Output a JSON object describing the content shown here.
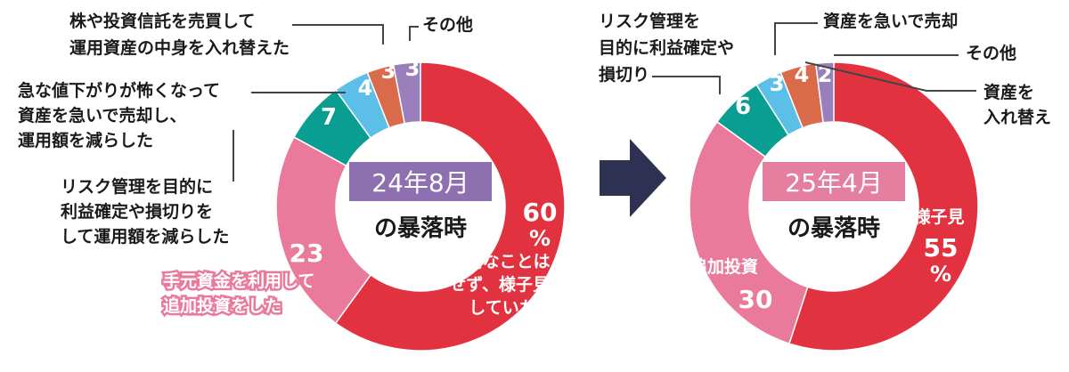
{
  "chart_data": [
    {
      "type": "pie",
      "title": "24年8月",
      "subtitle": "の暴落時",
      "unit": "%",
      "categories": [
        "特別なことはせず、様子見していた",
        "手元資金を利用して追加投資をした",
        "リスク管理を目的に利益確定や損切りをして運用額を減らした",
        "急な値下がりが怖くなって資産を急いで売却し、運用額を減らした",
        "株や投資信託を売買して運用資産の中身を入れ替えた",
        "その他"
      ],
      "values": [
        60,
        23,
        7,
        4,
        3,
        3
      ]
    },
    {
      "type": "pie",
      "title": "25年4月",
      "subtitle": "の暴落時",
      "unit": "%",
      "categories": [
        "様子見",
        "追加投資",
        "リスク管理を目的に利益確定や損切り",
        "資産を急いで売却",
        "資産を入れ替え",
        "その他"
      ],
      "values": [
        55,
        30,
        6,
        3,
        4,
        2
      ]
    }
  ],
  "colors": {
    "wait": "#e3323f",
    "add": "#e97a9c",
    "risk": "#0a9e93",
    "sell": "#5bbfe8",
    "swap": "#d96a4a",
    "other": "#9b7fbc",
    "title_box1": "#8e6fb0",
    "title_box2": "#e47fa0",
    "arrow": "#2f3152",
    "text": "#1a1a1a",
    "leader": "#444444"
  },
  "labels": {
    "c1_wait_text": [
      "特別なことは",
      "せず、様子見",
      "していた"
    ],
    "c1_add_text": [
      "手元資金を利用して",
      "追加投資をした"
    ],
    "c1_risk_text": [
      "リスク管理を目的に",
      "利益確定や損切りを",
      "して運用額を減らした"
    ],
    "c1_sell_text": [
      "急な値下がりが怖くなって",
      "資産を急いで売却し、",
      "運用額を減らした"
    ],
    "c1_swap_text": [
      "株や投資信託を売買して",
      "運用資産の中身を入れ替えた"
    ],
    "c1_other_text": [
      "その他"
    ],
    "c2_wait_text": [
      "様子見"
    ],
    "c2_add_text": [
      "追加投資"
    ],
    "c2_risk_text": [
      "リスク管理を",
      "目的に利益確定や",
      "損切り"
    ],
    "c2_sell_text": [
      "資産を急いで売却"
    ],
    "c2_swap_text": [
      "資産を",
      "入れ替え"
    ],
    "c2_other_text": [
      "その他"
    ]
  }
}
